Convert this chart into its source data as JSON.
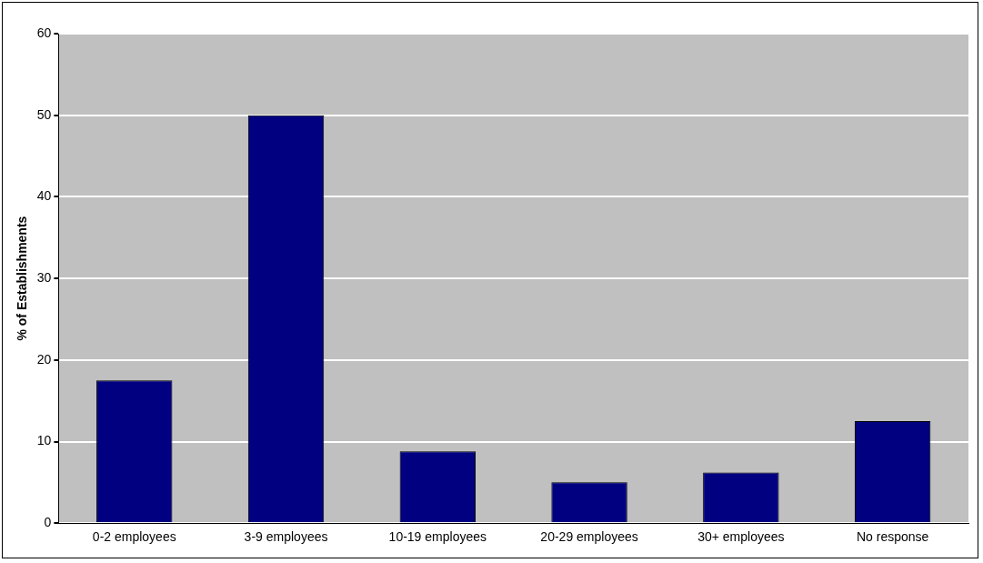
{
  "chart_data": {
    "type": "bar",
    "ylabel": "% of Establishments",
    "categories": [
      "0-2 employees",
      "3-9 employees",
      "10-19 employees",
      "20-29 employees",
      "30+ employees",
      "No response"
    ],
    "values": [
      17.5,
      50,
      8.8,
      5,
      6.2,
      12.5
    ],
    "color": "#000080",
    "ylim": [
      0,
      60
    ],
    "yticks": [
      0,
      10,
      20,
      30,
      40,
      50,
      60
    ],
    "grid": "y",
    "legend": false
  }
}
